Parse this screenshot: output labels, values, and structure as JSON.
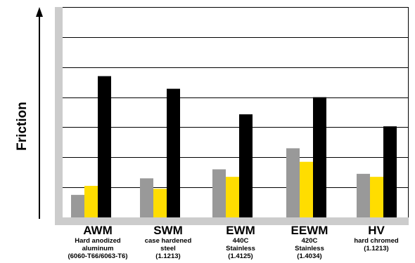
{
  "chart_data": {
    "type": "bar",
    "ylabel": "Friction",
    "xlabel": "",
    "grid": true,
    "ylim": [
      0,
      7
    ],
    "categories": [
      "AWM",
      "SWM",
      "EWM",
      "EEWM",
      "HV"
    ],
    "category_details": [
      [
        "Hard anodized",
        "aluminum",
        "(6060-T66/6063-T6)"
      ],
      [
        "case hardened",
        "steel",
        "(1.1213)"
      ],
      [
        "440C",
        "Stainless",
        "(1.4125)"
      ],
      [
        "420C",
        "Stainless",
        "(1.4034)"
      ],
      [
        "hard chromed",
        "(1.1213)"
      ]
    ],
    "series": [
      {
        "color": "#999999",
        "values": [
          0.75,
          1.3,
          1.6,
          2.3,
          1.45
        ]
      },
      {
        "color": "#ffdd00",
        "values": [
          1.05,
          0.95,
          1.35,
          1.85,
          1.35
        ]
      },
      {
        "color": "#000000",
        "values": [
          4.7,
          4.28,
          3.43,
          4.0,
          3.03
        ]
      }
    ]
  }
}
